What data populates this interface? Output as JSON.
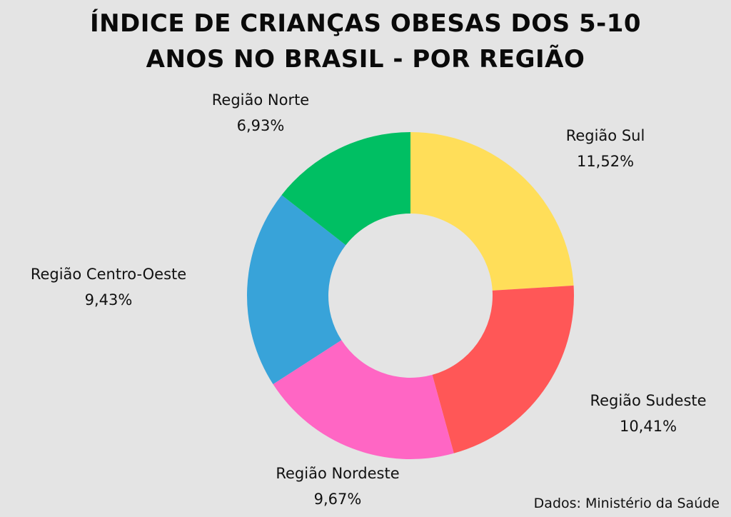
{
  "chart_data": {
    "type": "pie",
    "donut": true,
    "title_line1": "ÍNDICE DE CRIANÇAS OBESAS DOS 5-10",
    "title_line2": "ANOS NO BRASIL - POR REGIÃO",
    "categories": [
      "Região Sul",
      "Região Sudeste",
      "Região Nordeste",
      "Região Centro-Oeste",
      "Região Norte"
    ],
    "values": [
      11.52,
      10.41,
      9.67,
      9.43,
      6.93
    ],
    "value_labels": [
      "11,52%",
      "10,41%",
      "9,67%",
      "9,43%",
      "6,93%"
    ],
    "colors": [
      "#FFDE59",
      "#FF5757",
      "#FF66C4",
      "#38A3D9",
      "#00BF63"
    ],
    "source": "Dados: Ministério da Saúde"
  }
}
